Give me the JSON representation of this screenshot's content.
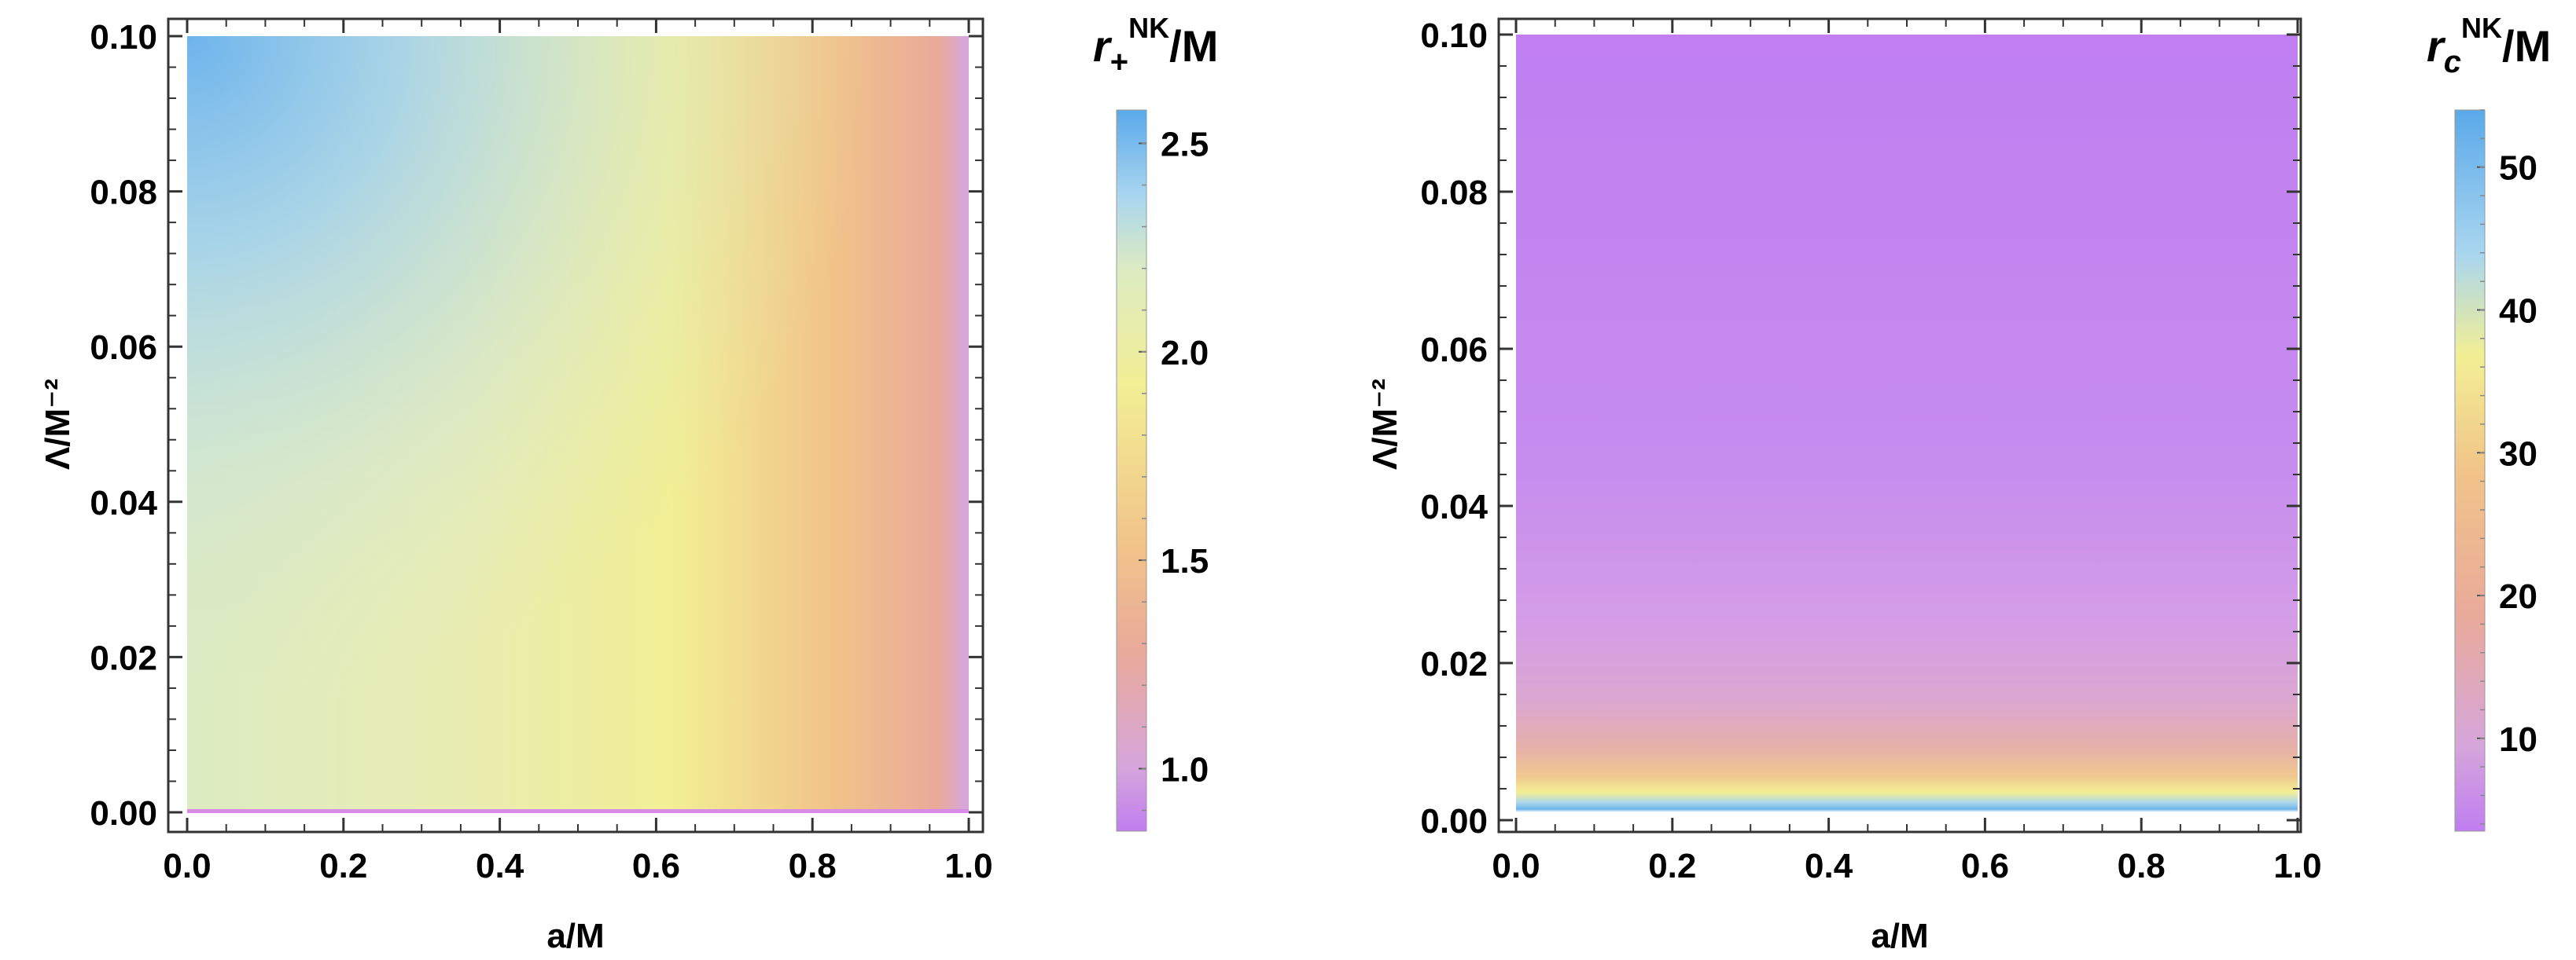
{
  "chart_data": [
    {
      "type": "heatmap",
      "title": "",
      "xlabel": "a/M",
      "ylabel": "Λ/M⁻²",
      "xlim": [
        0.0,
        1.0
      ],
      "ylim": [
        0.0,
        0.1
      ],
      "x_ticks": [
        "0.0",
        "0.2",
        "0.4",
        "0.6",
        "0.8",
        "1.0"
      ],
      "y_ticks": [
        "0.00",
        "0.02",
        "0.04",
        "0.06",
        "0.08",
        "0.10"
      ],
      "colorbar": {
        "title_base": "r",
        "title_sub": "+",
        "title_sup": "NK",
        "title_rest": "/M",
        "range": [
          0.85,
          2.58
        ],
        "ticks": [
          "1.0",
          "1.5",
          "2.0",
          "2.5"
        ],
        "tick_values": [
          1.0,
          1.5,
          2.0,
          2.5
        ]
      }
    },
    {
      "type": "heatmap",
      "title": "",
      "xlabel": "a/M",
      "ylabel": "Λ/M⁻²",
      "xlim": [
        0.0,
        1.0
      ],
      "ylim": [
        0.0,
        0.1
      ],
      "x_ticks": [
        "0.0",
        "0.2",
        "0.4",
        "0.6",
        "0.8",
        "1.0"
      ],
      "y_ticks": [
        "0.00",
        "0.02",
        "0.04",
        "0.06",
        "0.08",
        "0.10"
      ],
      "colorbar": {
        "title_base": "r",
        "title_sub": "c",
        "title_sup": "NK",
        "title_rest": "/M",
        "range": [
          3.5,
          54
        ],
        "ticks": [
          "10",
          "20",
          "30",
          "40",
          "50"
        ],
        "tick_values": [
          10,
          20,
          30,
          40,
          50
        ]
      }
    }
  ],
  "colors": {
    "blue": "#5aa9ea",
    "light_blue": "#a9d6ef",
    "pale_green": "#dcebc2",
    "yellow": "#f2ef95",
    "orange": "#f1c489",
    "salmon": "#e9aa9a",
    "pink": "#d6a6da",
    "purple": "#c07ef0",
    "frame": "#333333"
  }
}
